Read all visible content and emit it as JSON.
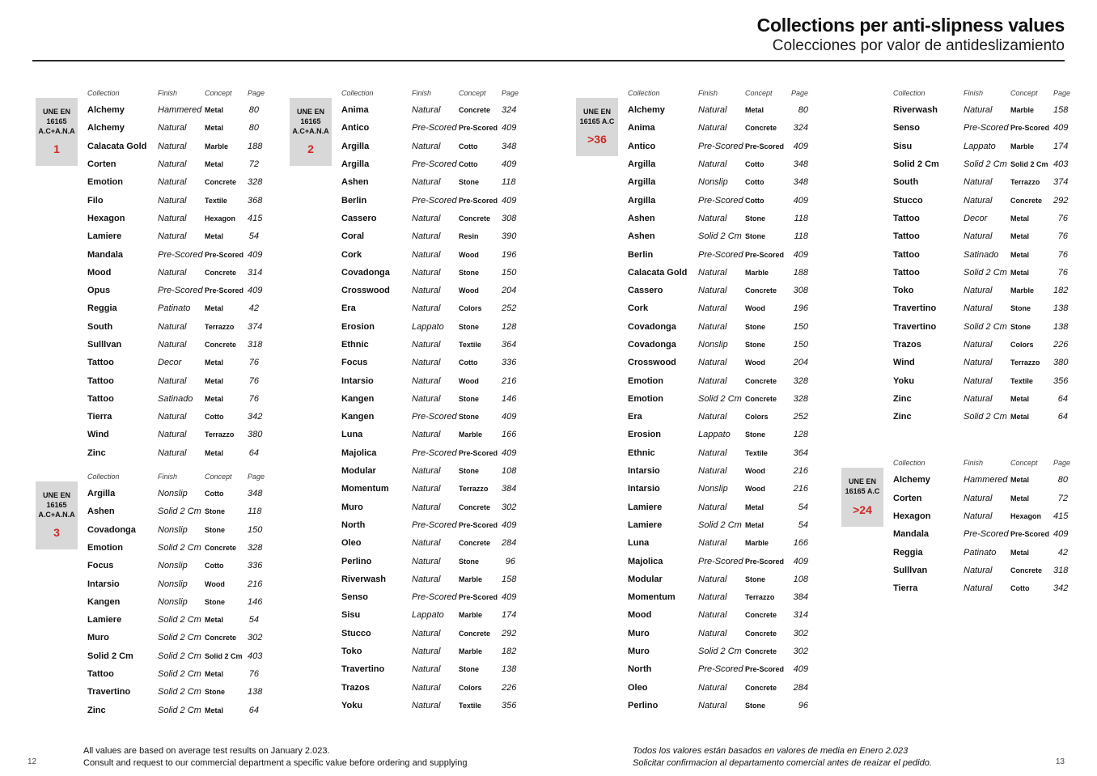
{
  "header": {
    "title": "Collections per anti-slipness values",
    "subtitle": "Colecciones por valor de antideslizamiento"
  },
  "table_headers": {
    "collection": "Collection",
    "finish": "Finish",
    "concept": "Concept",
    "page": "Page"
  },
  "colors": {
    "accent_red": "#cc2a25",
    "badge_bg": "#d8d8d8"
  },
  "sections": {
    "une1": {
      "badge": {
        "label": "UNE EN\n16165\nA.C+A.N.A",
        "value": "1"
      },
      "rows": [
        {
          "collection": "Alchemy",
          "finish": "Hammered",
          "concept": "Metal",
          "page": "80"
        },
        {
          "collection": "Alchemy",
          "finish": "Natural",
          "concept": "Metal",
          "page": "80"
        },
        {
          "collection": "Calacata Gold",
          "finish": "Natural",
          "concept": "Marble",
          "page": "188"
        },
        {
          "collection": "Corten",
          "finish": "Natural",
          "concept": "Metal",
          "page": "72"
        },
        {
          "collection": "Emotion",
          "finish": "Natural",
          "concept": "Concrete",
          "page": "328"
        },
        {
          "collection": "Filo",
          "finish": "Natural",
          "concept": "Textile",
          "page": "368"
        },
        {
          "collection": "Hexagon",
          "finish": "Natural",
          "concept": "Hexagon",
          "page": "415"
        },
        {
          "collection": "Lamiere",
          "finish": "Natural",
          "concept": "Metal",
          "page": "54"
        },
        {
          "collection": "Mandala",
          "finish": "Pre-Scored",
          "concept": "Pre-Scored",
          "page": "409"
        },
        {
          "collection": "Mood",
          "finish": "Natural",
          "concept": "Concrete",
          "page": "314"
        },
        {
          "collection": "Opus",
          "finish": "Pre-Scored",
          "concept": "Pre-Scored",
          "page": "409"
        },
        {
          "collection": "Reggia",
          "finish": "Patinato",
          "concept": "Metal",
          "page": "42"
        },
        {
          "collection": "South",
          "finish": "Natural",
          "concept": "Terrazzo",
          "page": "374"
        },
        {
          "collection": "Sulllvan",
          "finish": "Natural",
          "concept": "Concrete",
          "page": "318"
        },
        {
          "collection": "Tattoo",
          "finish": "Decor",
          "concept": "Metal",
          "page": "76"
        },
        {
          "collection": "Tattoo",
          "finish": "Natural",
          "concept": "Metal",
          "page": "76"
        },
        {
          "collection": "Tattoo",
          "finish": "Satinado",
          "concept": "Metal",
          "page": "76"
        },
        {
          "collection": "Tierra",
          "finish": "Natural",
          "concept": "Cotto",
          "page": "342"
        },
        {
          "collection": "Wind",
          "finish": "Natural",
          "concept": "Terrazzo",
          "page": "380"
        },
        {
          "collection": "Zinc",
          "finish": "Natural",
          "concept": "Metal",
          "page": "64"
        }
      ]
    },
    "une3": {
      "badge": {
        "label": "UNE EN\n16165\nA.C+A.N.A",
        "value": "3"
      },
      "rows": [
        {
          "collection": "Argilla",
          "finish": "Nonslip",
          "concept": "Cotto",
          "page": "348"
        },
        {
          "collection": "Ashen",
          "finish": "Solid 2 Cm",
          "concept": "Stone",
          "page": "118"
        },
        {
          "collection": "Covadonga",
          "finish": "Nonslip",
          "concept": "Stone",
          "page": "150"
        },
        {
          "collection": "Emotion",
          "finish": "Solid 2 Cm",
          "concept": "Concrete",
          "page": "328"
        },
        {
          "collection": "Focus",
          "finish": "Nonslip",
          "concept": "Cotto",
          "page": "336"
        },
        {
          "collection": "Intarsio",
          "finish": "Nonslip",
          "concept": "Wood",
          "page": "216"
        },
        {
          "collection": "Kangen",
          "finish": "Nonslip",
          "concept": "Stone",
          "page": "146"
        },
        {
          "collection": "Lamiere",
          "finish": "Solid 2 Cm",
          "concept": "Metal",
          "page": "54"
        },
        {
          "collection": "Muro",
          "finish": "Solid 2 Cm",
          "concept": "Concrete",
          "page": "302"
        },
        {
          "collection": "Solid 2 Cm",
          "finish": "Solid 2 Cm",
          "concept": "Solid 2 Cm",
          "page": "403"
        },
        {
          "collection": "Tattoo",
          "finish": "Solid 2 Cm",
          "concept": "Metal",
          "page": "76"
        },
        {
          "collection": "Travertino",
          "finish": "Solid 2 Cm",
          "concept": "Stone",
          "page": "138"
        },
        {
          "collection": "Zinc",
          "finish": "Solid 2 Cm",
          "concept": "Metal",
          "page": "64"
        }
      ]
    },
    "une2": {
      "badge": {
        "label": "UNE EN\n16165\nA.C+A.N.A",
        "value": "2"
      },
      "rows": [
        {
          "collection": "Anima",
          "finish": "Natural",
          "concept": "Concrete",
          "page": "324"
        },
        {
          "collection": "Antico",
          "finish": "Pre-Scored",
          "concept": "Pre-Scored",
          "page": "409"
        },
        {
          "collection": "Argilla",
          "finish": "Natural",
          "concept": "Cotto",
          "page": "348"
        },
        {
          "collection": "Argilla",
          "finish": "Pre-Scored",
          "concept": "Cotto",
          "page": "409"
        },
        {
          "collection": "Ashen",
          "finish": "Natural",
          "concept": "Stone",
          "page": "118"
        },
        {
          "collection": "Berlin",
          "finish": "Pre-Scored",
          "concept": "Pre-Scored",
          "page": "409"
        },
        {
          "collection": "Cassero",
          "finish": "Natural",
          "concept": "Concrete",
          "page": "308"
        },
        {
          "collection": "Coral",
          "finish": "Natural",
          "concept": "Resin",
          "page": "390"
        },
        {
          "collection": "Cork",
          "finish": "Natural",
          "concept": "Wood",
          "page": "196"
        },
        {
          "collection": "Covadonga",
          "finish": "Natural",
          "concept": "Stone",
          "page": "150"
        },
        {
          "collection": "Crosswood",
          "finish": "Natural",
          "concept": "Wood",
          "page": "204"
        },
        {
          "collection": "Era",
          "finish": "Natural",
          "concept": "Colors",
          "page": "252"
        },
        {
          "collection": "Erosion",
          "finish": "Lappato",
          "concept": "Stone",
          "page": "128"
        },
        {
          "collection": "Ethnic",
          "finish": "Natural",
          "concept": "Textile",
          "page": "364"
        },
        {
          "collection": "Focus",
          "finish": "Natural",
          "concept": "Cotto",
          "page": "336"
        },
        {
          "collection": "Intarsio",
          "finish": "Natural",
          "concept": "Wood",
          "page": "216"
        },
        {
          "collection": "Kangen",
          "finish": "Natural",
          "concept": "Stone",
          "page": "146"
        },
        {
          "collection": "Kangen",
          "finish": "Pre-Scored",
          "concept": "Stone",
          "page": "409"
        },
        {
          "collection": "Luna",
          "finish": "Natural",
          "concept": "Marble",
          "page": "166"
        },
        {
          "collection": "Majolica",
          "finish": "Pre-Scored",
          "concept": "Pre-Scored",
          "page": "409"
        },
        {
          "collection": "Modular",
          "finish": "Natural",
          "concept": "Stone",
          "page": "108"
        },
        {
          "collection": "Momentum",
          "finish": "Natural",
          "concept": "Terrazzo",
          "page": "384"
        },
        {
          "collection": "Muro",
          "finish": "Natural",
          "concept": "Concrete",
          "page": "302"
        },
        {
          "collection": "North",
          "finish": "Pre-Scored",
          "concept": "Pre-Scored",
          "page": "409"
        },
        {
          "collection": "Oleo",
          "finish": "Natural",
          "concept": "Concrete",
          "page": "284"
        },
        {
          "collection": "Perlino",
          "finish": "Natural",
          "concept": "Stone",
          "page": "96"
        },
        {
          "collection": "Riverwash",
          "finish": "Natural",
          "concept": "Marble",
          "page": "158"
        },
        {
          "collection": "Senso",
          "finish": "Pre-Scored",
          "concept": "Pre-Scored",
          "page": "409"
        },
        {
          "collection": "Sisu",
          "finish": "Lappato",
          "concept": "Marble",
          "page": "174"
        },
        {
          "collection": "Stucco",
          "finish": "Natural",
          "concept": "Concrete",
          "page": "292"
        },
        {
          "collection": "Toko",
          "finish": "Natural",
          "concept": "Marble",
          "page": "182"
        },
        {
          "collection": "Travertino",
          "finish": "Natural",
          "concept": "Stone",
          "page": "138"
        },
        {
          "collection": "Trazos",
          "finish": "Natural",
          "concept": "Colors",
          "page": "226"
        },
        {
          "collection": "Yoku",
          "finish": "Natural",
          "concept": "Textile",
          "page": "356"
        }
      ]
    },
    "une36a": {
      "badge": {
        "label": "UNE EN\n16165 A.C",
        "value": ">36"
      },
      "rows": [
        {
          "collection": "Alchemy",
          "finish": "Natural",
          "concept": "Metal",
          "page": "80"
        },
        {
          "collection": "Anima",
          "finish": "Natural",
          "concept": "Concrete",
          "page": "324"
        },
        {
          "collection": "Antico",
          "finish": "Pre-Scored",
          "concept": "Pre-Scored",
          "page": "409"
        },
        {
          "collection": "Argilla",
          "finish": "Natural",
          "concept": "Cotto",
          "page": "348"
        },
        {
          "collection": "Argilla",
          "finish": "Nonslip",
          "concept": "Cotto",
          "page": "348"
        },
        {
          "collection": "Argilla",
          "finish": "Pre-Scored",
          "concept": "Cotto",
          "page": "409"
        },
        {
          "collection": "Ashen",
          "finish": "Natural",
          "concept": "Stone",
          "page": "118"
        },
        {
          "collection": "Ashen",
          "finish": "Solid 2 Cm",
          "concept": "Stone",
          "page": "118"
        },
        {
          "collection": "Berlin",
          "finish": "Pre-Scored",
          "concept": "Pre-Scored",
          "page": "409"
        },
        {
          "collection": "Calacata Gold",
          "finish": "Natural",
          "concept": "Marble",
          "page": "188"
        },
        {
          "collection": "Cassero",
          "finish": "Natural",
          "concept": "Concrete",
          "page": "308"
        },
        {
          "collection": "Cork",
          "finish": "Natural",
          "concept": "Wood",
          "page": "196"
        },
        {
          "collection": "Covadonga",
          "finish": "Natural",
          "concept": "Stone",
          "page": "150"
        },
        {
          "collection": "Covadonga",
          "finish": "Nonslip",
          "concept": "Stone",
          "page": "150"
        },
        {
          "collection": "Crosswood",
          "finish": "Natural",
          "concept": "Wood",
          "page": "204"
        },
        {
          "collection": "Emotion",
          "finish": "Natural",
          "concept": "Concrete",
          "page": "328"
        },
        {
          "collection": "Emotion",
          "finish": "Solid 2 Cm",
          "concept": "Concrete",
          "page": "328"
        },
        {
          "collection": "Era",
          "finish": "Natural",
          "concept": "Colors",
          "page": "252"
        },
        {
          "collection": "Erosion",
          "finish": "Lappato",
          "concept": "Stone",
          "page": "128"
        },
        {
          "collection": "Ethnic",
          "finish": "Natural",
          "concept": "Textile",
          "page": "364"
        },
        {
          "collection": "Intarsio",
          "finish": "Natural",
          "concept": "Wood",
          "page": "216"
        },
        {
          "collection": "Intarsio",
          "finish": "Nonslip",
          "concept": "Wood",
          "page": "216"
        },
        {
          "collection": "Lamiere",
          "finish": "Natural",
          "concept": "Metal",
          "page": "54"
        },
        {
          "collection": "Lamiere",
          "finish": "Solid 2 Cm",
          "concept": "Metal",
          "page": "54"
        },
        {
          "collection": "Luna",
          "finish": "Natural",
          "concept": "Marble",
          "page": "166"
        },
        {
          "collection": "Majolica",
          "finish": "Pre-Scored",
          "concept": "Pre-Scored",
          "page": "409"
        },
        {
          "collection": "Modular",
          "finish": "Natural",
          "concept": "Stone",
          "page": "108"
        },
        {
          "collection": "Momentum",
          "finish": "Natural",
          "concept": "Terrazzo",
          "page": "384"
        },
        {
          "collection": "Mood",
          "finish": "Natural",
          "concept": "Concrete",
          "page": "314"
        },
        {
          "collection": "Muro",
          "finish": "Natural",
          "concept": "Concrete",
          "page": "302"
        },
        {
          "collection": "Muro",
          "finish": "Solid 2 Cm",
          "concept": "Concrete",
          "page": "302"
        },
        {
          "collection": "North",
          "finish": "Pre-Scored",
          "concept": "Pre-Scored",
          "page": "409"
        },
        {
          "collection": "Oleo",
          "finish": "Natural",
          "concept": "Concrete",
          "page": "284"
        },
        {
          "collection": "Perlino",
          "finish": "Natural",
          "concept": "Stone",
          "page": "96"
        }
      ]
    },
    "une36b": {
      "rows": [
        {
          "collection": "Riverwash",
          "finish": "Natural",
          "concept": "Marble",
          "page": "158"
        },
        {
          "collection": "Senso",
          "finish": "Pre-Scored",
          "concept": "Pre-Scored",
          "page": "409"
        },
        {
          "collection": "Sisu",
          "finish": "Lappato",
          "concept": "Marble",
          "page": "174"
        },
        {
          "collection": "Solid 2 Cm",
          "finish": "Solid 2 Cm",
          "concept": "Solid 2 Cm",
          "page": "403"
        },
        {
          "collection": "South",
          "finish": "Natural",
          "concept": "Terrazzo",
          "page": "374"
        },
        {
          "collection": "Stucco",
          "finish": "Natural",
          "concept": "Concrete",
          "page": "292"
        },
        {
          "collection": "Tattoo",
          "finish": "Decor",
          "concept": "Metal",
          "page": "76"
        },
        {
          "collection": "Tattoo",
          "finish": "Natural",
          "concept": "Metal",
          "page": "76"
        },
        {
          "collection": "Tattoo",
          "finish": "Satinado",
          "concept": "Metal",
          "page": "76"
        },
        {
          "collection": "Tattoo",
          "finish": "Solid 2 Cm",
          "concept": "Metal",
          "page": "76"
        },
        {
          "collection": "Toko",
          "finish": "Natural",
          "concept": "Marble",
          "page": "182"
        },
        {
          "collection": "Travertino",
          "finish": "Natural",
          "concept": "Stone",
          "page": "138"
        },
        {
          "collection": "Travertino",
          "finish": "Solid 2 Cm",
          "concept": "Stone",
          "page": "138"
        },
        {
          "collection": "Trazos",
          "finish": "Natural",
          "concept": "Colors",
          "page": "226"
        },
        {
          "collection": "Wind",
          "finish": "Natural",
          "concept": "Terrazzo",
          "page": "380"
        },
        {
          "collection": "Yoku",
          "finish": "Natural",
          "concept": "Textile",
          "page": "356"
        },
        {
          "collection": "Zinc",
          "finish": "Natural",
          "concept": "Metal",
          "page": "64"
        },
        {
          "collection": "Zinc",
          "finish": "Solid 2 Cm",
          "concept": "Metal",
          "page": "64"
        }
      ]
    },
    "une24": {
      "badge": {
        "label": "UNE EN\n16165 A.C",
        "value": ">24"
      },
      "rows": [
        {
          "collection": "Alchemy",
          "finish": "Hammered",
          "concept": "Metal",
          "page": "80"
        },
        {
          "collection": "Corten",
          "finish": "Natural",
          "concept": "Metal",
          "page": "72"
        },
        {
          "collection": "Hexagon",
          "finish": "Natural",
          "concept": "Hexagon",
          "page": "415"
        },
        {
          "collection": "Mandala",
          "finish": "Pre-Scored",
          "concept": "Pre-Scored",
          "page": "409"
        },
        {
          "collection": "Reggia",
          "finish": "Patinato",
          "concept": "Metal",
          "page": "42"
        },
        {
          "collection": "Sulllvan",
          "finish": "Natural",
          "concept": "Concrete",
          "page": "318"
        },
        {
          "collection": "Tierra",
          "finish": "Natural",
          "concept": "Cotto",
          "page": "342"
        }
      ]
    }
  },
  "footer": {
    "left_page_number": "12",
    "right_page_number": "13",
    "left_lines": [
      "All values are based on average test results on January 2.023.",
      "Consult and request to our commercial department a specific value before ordering and supplying"
    ],
    "right_lines": [
      "Todos los valores están basados en valores de media en Enero 2.023",
      "Solicitar confirmacion al departamento comercial antes de reaizar el pedido."
    ]
  }
}
